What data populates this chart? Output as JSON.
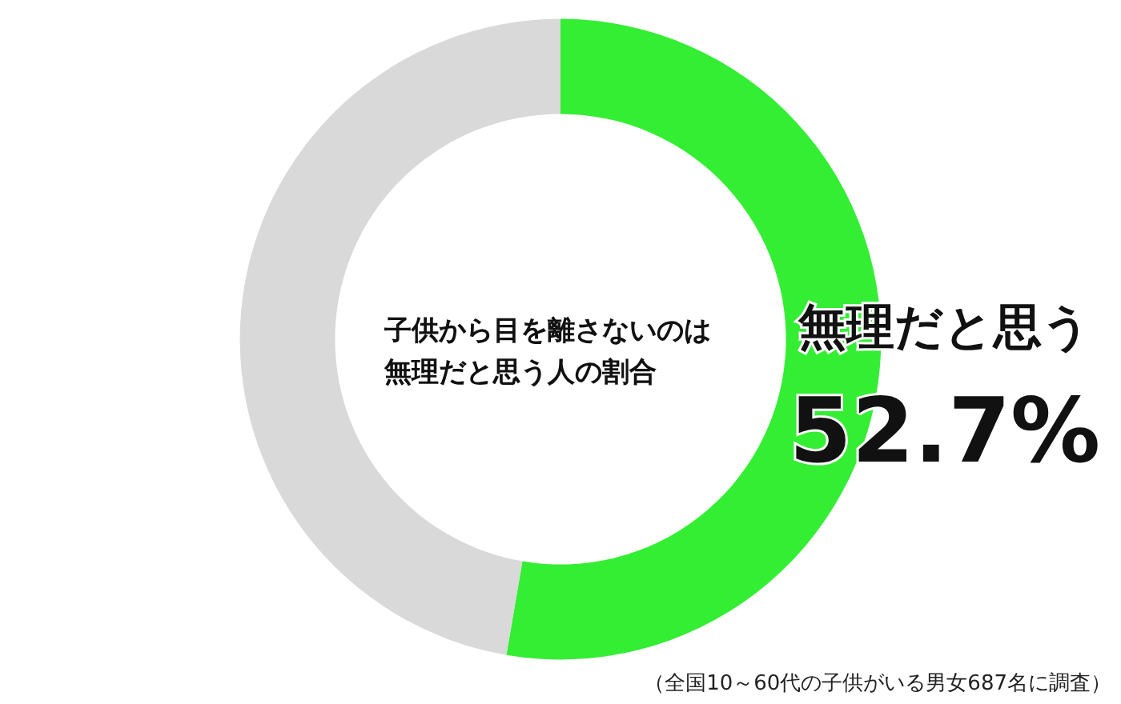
{
  "chart_data": {
    "type": "donut",
    "title": "子供から目を離さないのは無理だと思う人の割合",
    "categories": [
      "無理だと思う",
      null
    ],
    "values": [
      52.7,
      47.3
    ],
    "colors": [
      "#33ee33",
      "#d9d9d9"
    ],
    "value_labels": [
      "52.7%",
      null
    ],
    "legend": false,
    "annotations": [
      "（全国10～60代の子供がいる男女687名に調査）"
    ]
  }
}
